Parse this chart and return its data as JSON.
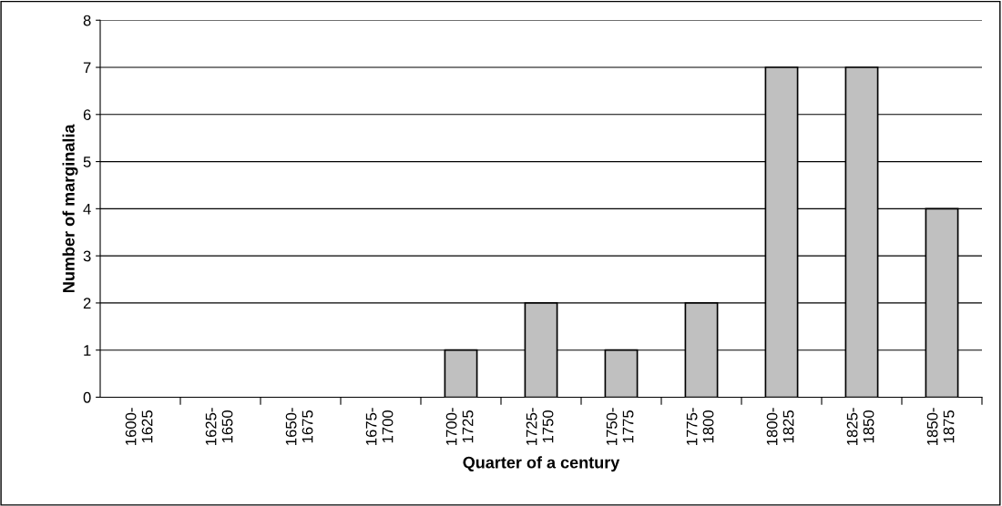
{
  "chart_data": {
    "type": "bar",
    "xlabel": "Quarter of a century",
    "ylabel": "Number of marginalia",
    "categories": [
      "1600-\n1625",
      "1625-\n1650",
      "1650-\n1675",
      "1675-\n1700",
      "1700-\n1725",
      "1725-\n1750",
      "1750-\n1775",
      "1775-\n1800",
      "1800-\n1825",
      "1825-\n1850",
      "1850-\n1875"
    ],
    "values": [
      0,
      0,
      0,
      0,
      1,
      2,
      1,
      2,
      7,
      7,
      4
    ],
    "color": "#c0c0c0",
    "ylim": [
      0,
      8
    ],
    "yticks": [
      0,
      1,
      2,
      3,
      4,
      5,
      6,
      7,
      8
    ],
    "grid": "y",
    "legend": false
  }
}
